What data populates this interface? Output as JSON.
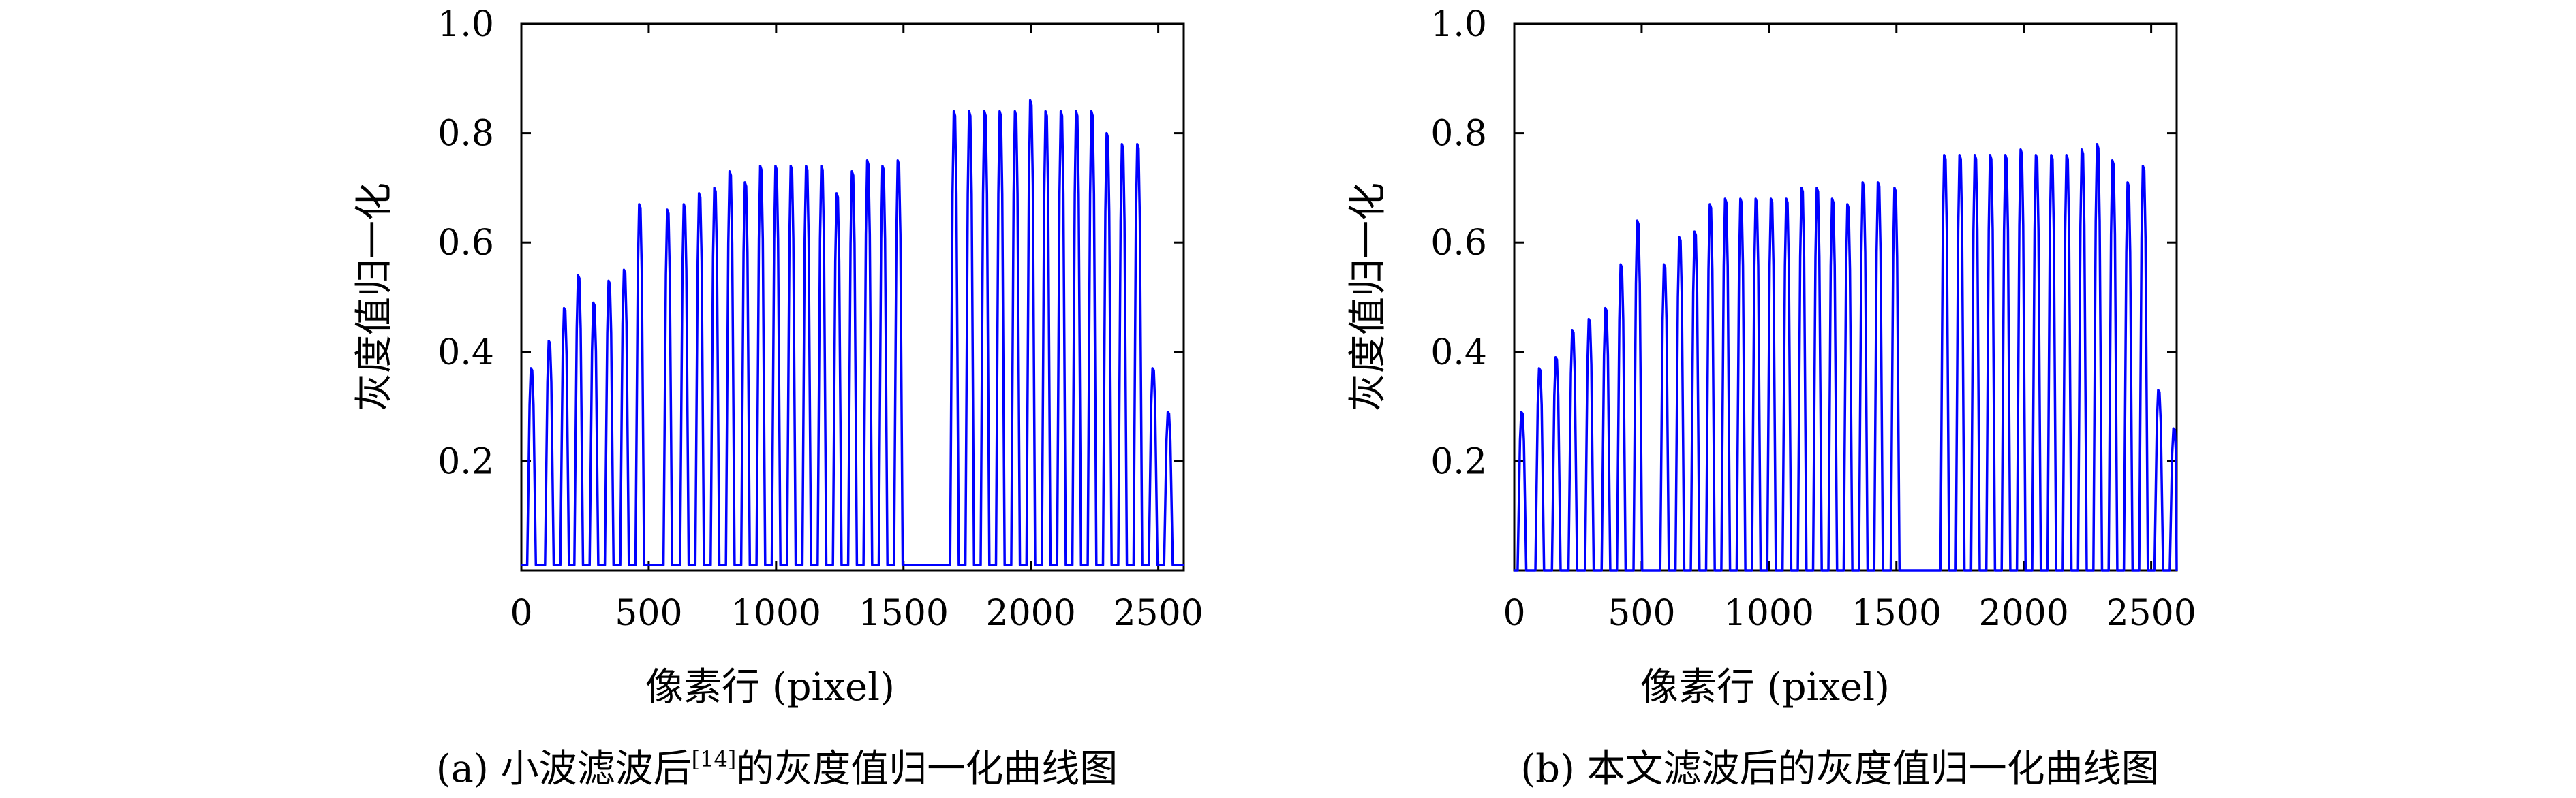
{
  "colors": {
    "series": "#0000ff",
    "axis": "#000000",
    "background": "#ffffff"
  },
  "chart_data": [
    {
      "type": "line",
      "caption_prefix": "(a) 小波滤波后",
      "caption_ref": "[14]",
      "caption_suffix": "的灰度值归一化曲线图",
      "xlabel": "像素行 (pixel)",
      "ylabel": "灰度值归一化",
      "xlim": [
        0,
        2600
      ],
      "ylim": [
        0,
        1.0
      ],
      "x_ticks": [
        0,
        500,
        1000,
        1500,
        2000,
        2500
      ],
      "x_tick_labels": [
        "0",
        "500",
        "1000",
        "1500",
        "2000",
        "2500"
      ],
      "y_ticks": [
        0.2,
        0.4,
        0.6,
        0.8,
        1.0
      ],
      "y_tick_labels": [
        "0.2",
        "0.4",
        "0.6",
        "0.8",
        "1.0"
      ],
      "grid": false,
      "series": [
        {
          "peak_x": [
            40,
            110,
            170,
            225,
            285,
            345,
            405,
            465,
            575,
            640,
            700,
            760,
            820,
            880,
            940,
            1000,
            1060,
            1120,
            1180,
            1240,
            1300,
            1360,
            1420,
            1480,
            1700,
            1760,
            1820,
            1880,
            1940,
            2000,
            2060,
            2120,
            2180,
            2240,
            2300,
            2360,
            2420,
            2480,
            2540
          ],
          "peak_y": [
            0.37,
            0.42,
            0.48,
            0.54,
            0.49,
            0.53,
            0.55,
            0.67,
            0.66,
            0.67,
            0.69,
            0.7,
            0.73,
            0.71,
            0.74,
            0.74,
            0.74,
            0.74,
            0.74,
            0.69,
            0.73,
            0.75,
            0.74,
            0.75,
            0.84,
            0.84,
            0.84,
            0.84,
            0.84,
            0.86,
            0.84,
            0.84,
            0.84,
            0.84,
            0.8,
            0.78,
            0.78,
            0.37,
            0.29
          ],
          "base_y": 0.01
        }
      ]
    },
    {
      "type": "line",
      "caption_prefix": "(b) 本文滤波后的灰度值归一化曲线图",
      "caption_ref": "",
      "caption_suffix": "",
      "xlabel": "像素行 (pixel)",
      "ylabel": "灰度值归一化",
      "xlim": [
        0,
        2600
      ],
      "ylim": [
        0,
        1.0
      ],
      "x_ticks": [
        0,
        500,
        1000,
        1500,
        2000,
        2500
      ],
      "x_tick_labels": [
        "0",
        "500",
        "1000",
        "1500",
        "2000",
        "2500"
      ],
      "y_ticks": [
        0.2,
        0.4,
        0.6,
        0.8,
        1.0
      ],
      "y_tick_labels": [
        "0.2",
        "0.4",
        "0.6",
        "0.8",
        "1.0"
      ],
      "grid": false,
      "series": [
        {
          "peak_x": [
            30,
            100,
            165,
            230,
            295,
            360,
            420,
            485,
            590,
            650,
            710,
            770,
            830,
            890,
            950,
            1010,
            1070,
            1130,
            1190,
            1250,
            1310,
            1370,
            1430,
            1495,
            1690,
            1750,
            1810,
            1870,
            1930,
            1990,
            2050,
            2110,
            2170,
            2230,
            2290,
            2350,
            2410,
            2470,
            2530,
            2590
          ],
          "peak_y": [
            0.29,
            0.37,
            0.39,
            0.44,
            0.46,
            0.48,
            0.56,
            0.64,
            0.56,
            0.61,
            0.62,
            0.67,
            0.68,
            0.68,
            0.68,
            0.68,
            0.68,
            0.7,
            0.7,
            0.68,
            0.67,
            0.71,
            0.71,
            0.7,
            0.76,
            0.76,
            0.76,
            0.76,
            0.76,
            0.77,
            0.76,
            0.76,
            0.76,
            0.77,
            0.78,
            0.75,
            0.71,
            0.74,
            0.33,
            0.26
          ],
          "base_y": 0.0
        }
      ]
    }
  ]
}
